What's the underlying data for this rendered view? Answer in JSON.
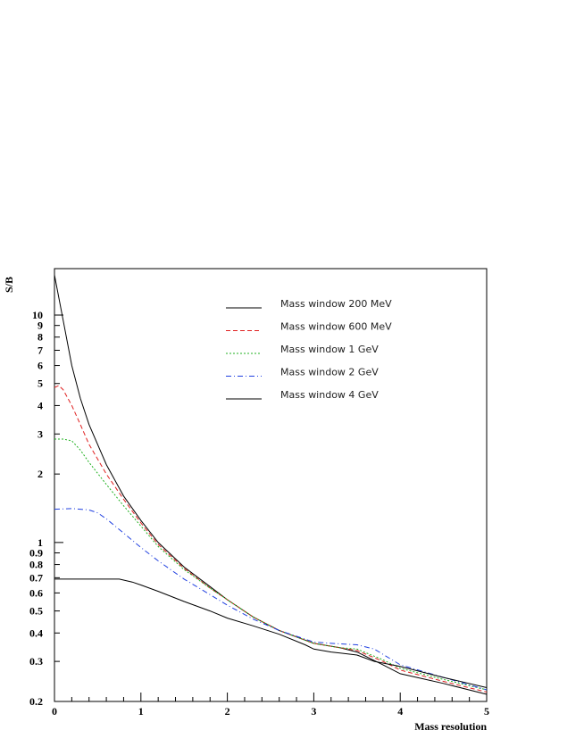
{
  "chart_data": {
    "type": "line",
    "xlabel": "Mass resolution",
    "ylabel": "S/B",
    "x_scale": "linear",
    "y_scale": "log",
    "xlim": [
      0,
      5
    ],
    "ylim": [
      0.2,
      16
    ],
    "x_ticks": [
      "0",
      "1",
      "2",
      "3",
      "4",
      "5"
    ],
    "y_ticks": [
      {
        "value": 0.2,
        "label": "0.2"
      },
      {
        "value": 0.3,
        "label": "0.3"
      },
      {
        "value": 0.4,
        "label": "0.4"
      },
      {
        "value": 0.5,
        "label": "0.5"
      },
      {
        "value": 0.6,
        "label": "0.6"
      },
      {
        "value": 0.7,
        "label": "0.7"
      },
      {
        "value": 0.8,
        "label": "0.8"
      },
      {
        "value": 0.9,
        "label": "0.9"
      },
      {
        "value": 1,
        "label": "1"
      },
      {
        "value": 2,
        "label": "2"
      },
      {
        "value": 3,
        "label": "3"
      },
      {
        "value": 4,
        "label": "4"
      },
      {
        "value": 5,
        "label": "5"
      },
      {
        "value": 6,
        "label": "6"
      },
      {
        "value": 7,
        "label": "7"
      },
      {
        "value": 8,
        "label": "8"
      },
      {
        "value": 9,
        "label": "9"
      },
      {
        "value": 10,
        "label": "10"
      }
    ],
    "legend_position": "top-right",
    "grid": false,
    "series": [
      {
        "name": "Mass window 200 MeV",
        "color": "#000000",
        "dash": "",
        "x": [
          0,
          0.1,
          0.2,
          0.3,
          0.4,
          0.6,
          0.8,
          1.0,
          1.2,
          1.5,
          1.8,
          2.0,
          2.3,
          2.6,
          3.0,
          3.3,
          3.5,
          3.8,
          4.0,
          4.5,
          5.0
        ],
        "y": [
          15,
          9.5,
          6.0,
          4.3,
          3.3,
          2.2,
          1.6,
          1.25,
          1.0,
          0.78,
          0.64,
          0.56,
          0.47,
          0.41,
          0.36,
          0.345,
          0.33,
          0.29,
          0.265,
          0.24,
          0.215
        ]
      },
      {
        "name": "Mass window 600 MeV",
        "color": "#e02020",
        "dash": "5,3",
        "x": [
          0,
          0.05,
          0.1,
          0.2,
          0.3,
          0.4,
          0.6,
          0.8,
          1.0,
          1.2,
          1.5,
          1.8,
          2.0,
          2.3,
          2.6,
          3.0,
          3.3,
          3.5,
          3.8,
          4.0,
          4.5,
          5.0
        ],
        "y": [
          4.8,
          4.9,
          4.7,
          4.0,
          3.3,
          2.7,
          2.0,
          1.55,
          1.22,
          0.98,
          0.77,
          0.63,
          0.56,
          0.47,
          0.41,
          0.36,
          0.345,
          0.335,
          0.3,
          0.275,
          0.245,
          0.22
        ]
      },
      {
        "name": "Mass window 1 GeV",
        "color": "#20b020",
        "dash": "2,2",
        "x": [
          0,
          0.1,
          0.2,
          0.3,
          0.4,
          0.6,
          0.8,
          1.0,
          1.2,
          1.5,
          1.8,
          2.0,
          2.3,
          2.6,
          3.0,
          3.3,
          3.5,
          3.8,
          4.0,
          4.5,
          5.0
        ],
        "y": [
          2.85,
          2.85,
          2.8,
          2.55,
          2.25,
          1.8,
          1.45,
          1.18,
          0.96,
          0.76,
          0.63,
          0.56,
          0.47,
          0.41,
          0.36,
          0.345,
          0.34,
          0.305,
          0.28,
          0.25,
          0.225
        ]
      },
      {
        "name": "Mass window 2 GeV",
        "color": "#2040e0",
        "dash": "6,3,1,3",
        "x": [
          0,
          0.2,
          0.4,
          0.5,
          0.6,
          0.8,
          1.0,
          1.2,
          1.5,
          1.8,
          2.0,
          2.3,
          2.6,
          3.0,
          3.2,
          3.5,
          3.7,
          4.0,
          4.5,
          5.0
        ],
        "y": [
          1.4,
          1.41,
          1.39,
          1.35,
          1.27,
          1.1,
          0.95,
          0.83,
          0.69,
          0.59,
          0.53,
          0.46,
          0.41,
          0.365,
          0.36,
          0.355,
          0.34,
          0.29,
          0.255,
          0.225
        ]
      },
      {
        "name": "Mass window 4 GeV",
        "color": "#000000",
        "dash": "",
        "x": [
          0,
          0.2,
          0.4,
          0.6,
          0.75,
          0.9,
          1.0,
          1.2,
          1.5,
          1.8,
          2.0,
          2.3,
          2.6,
          2.9,
          3.0,
          3.2,
          3.5,
          3.7,
          4.0,
          4.5,
          5.0
        ],
        "y": [
          0.69,
          0.69,
          0.69,
          0.69,
          0.69,
          0.67,
          0.65,
          0.61,
          0.55,
          0.5,
          0.465,
          0.43,
          0.395,
          0.355,
          0.34,
          0.33,
          0.32,
          0.3,
          0.285,
          0.255,
          0.23
        ]
      }
    ]
  }
}
